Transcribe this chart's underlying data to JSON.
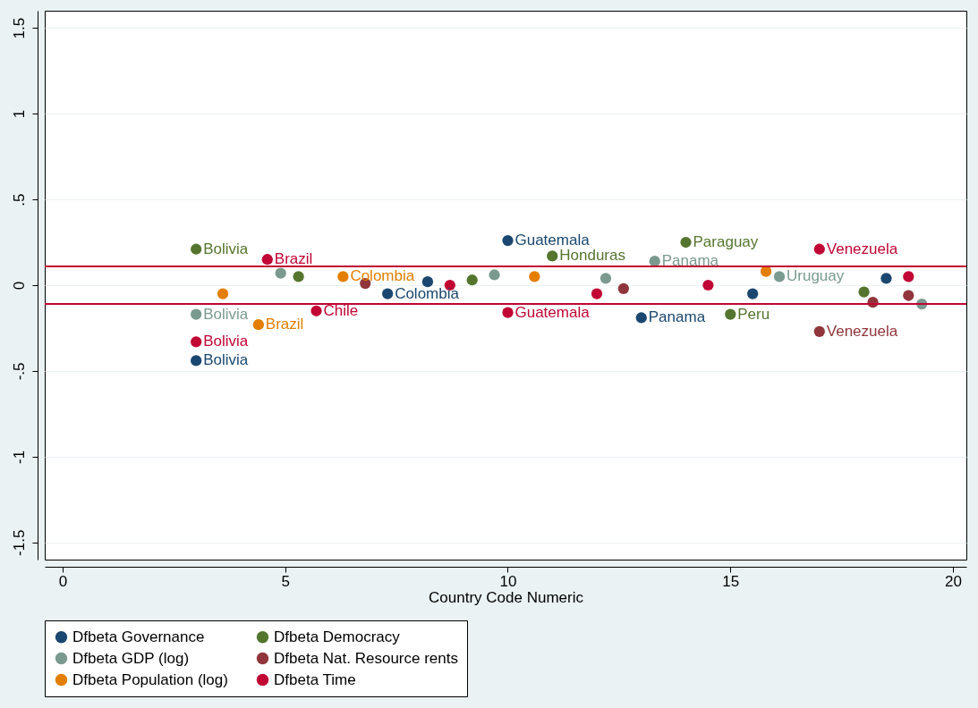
{
  "chart_data": {
    "type": "scatter",
    "xlabel": "Country Code Numeric",
    "xlim": [
      -0.4,
      20.3
    ],
    "xticks": [
      0,
      5,
      10,
      15,
      20
    ],
    "ylim": [
      -1.6,
      1.6
    ],
    "yticks": [
      {
        "value": -1.5,
        "label": "-1.5"
      },
      {
        "value": -1,
        "label": "-1"
      },
      {
        "value": -0.5,
        "label": "-.5"
      },
      {
        "value": 0,
        "label": "0"
      },
      {
        "value": 0.5,
        "label": ".5"
      },
      {
        "value": 1,
        "label": "1"
      },
      {
        "value": 1.5,
        "label": "1.5"
      }
    ],
    "grid": "y",
    "legend": "bottom",
    "marker": "circle",
    "ref_lines": [
      {
        "axis": "y",
        "value": 0.11,
        "color": "#c10534"
      },
      {
        "axis": "y",
        "value": -0.11,
        "color": "#c10534"
      }
    ],
    "series": [
      {
        "name": "Dfbeta Governance",
        "color": "#1a476f",
        "x": [
          3,
          7.3,
          10,
          13,
          8.2,
          15.5,
          18.5
        ],
        "values": [
          -0.44,
          -0.05,
          0.26,
          -0.19,
          0.02,
          -0.05,
          0.04
        ],
        "value_labels": [
          "Bolivia",
          "Colombia",
          "Guatemala",
          "Panama",
          null,
          null,
          null
        ]
      },
      {
        "name": "Dfbeta Democracy",
        "color": "#55752f",
        "x": [
          3,
          11,
          14,
          15,
          5.3,
          9.2,
          18
        ],
        "values": [
          0.21,
          0.17,
          0.25,
          -0.17,
          0.05,
          0.03,
          -0.04
        ],
        "value_labels": [
          "Bolivia",
          "Honduras",
          "Paraguay",
          "Peru",
          null,
          null,
          null
        ]
      },
      {
        "name": "Dfbeta GDP (log)",
        "color": "#7a9a90",
        "x": [
          3,
          13.3,
          16.1,
          19.3,
          4.9,
          9.7,
          12.2
        ],
        "values": [
          -0.17,
          0.14,
          0.05,
          -0.11,
          0.07,
          0.06,
          0.04
        ],
        "value_labels": [
          "Bolivia",
          "Panama",
          "Uruguay",
          null,
          null,
          null,
          null
        ]
      },
      {
        "name": "Dfbeta Nat. Resource rents",
        "color": "#90353b",
        "x": [
          17,
          18.2,
          19,
          6.8,
          12.6
        ],
        "values": [
          -0.27,
          -0.1,
          -0.06,
          0.01,
          -0.02
        ],
        "value_labels": [
          "Venezuela",
          null,
          null,
          null,
          null
        ]
      },
      {
        "name": "Dfbeta Population (log)",
        "color": "#e37e00",
        "x": [
          4.4,
          6.3,
          15.8,
          10.6,
          3.6
        ],
        "values": [
          -0.23,
          0.05,
          0.08,
          0.05,
          -0.05
        ],
        "value_labels": [
          "Brazil",
          "Colombia",
          null,
          null,
          null
        ]
      },
      {
        "name": "Dfbeta Time",
        "color": "#c10534",
        "x": [
          3,
          4.6,
          5.7,
          10,
          17,
          8.7,
          12,
          14.5,
          19
        ],
        "values": [
          -0.33,
          0.15,
          -0.15,
          -0.16,
          0.21,
          0,
          -0.05,
          0,
          0.05
        ],
        "value_labels": [
          "Bolivia",
          "Brazil",
          "Chile",
          "Guatemala",
          "Venezuela",
          null,
          null,
          null,
          null
        ]
      }
    ]
  }
}
